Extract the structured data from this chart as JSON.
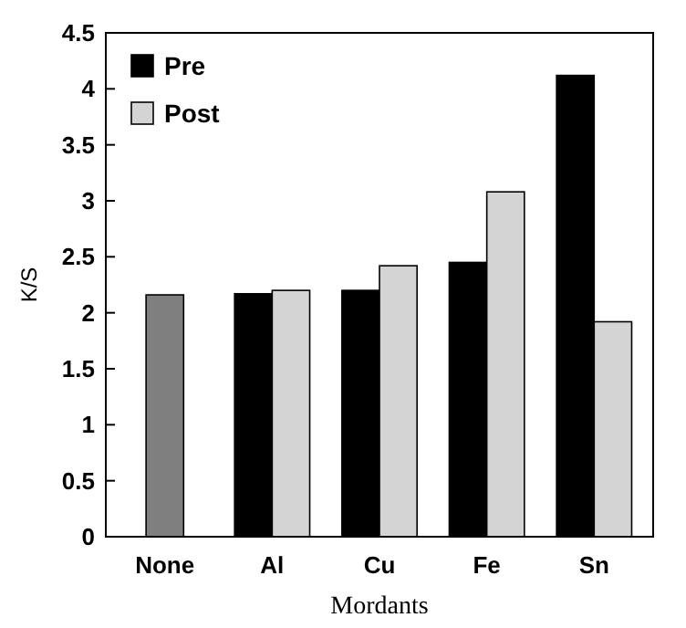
{
  "chart_data": {
    "type": "bar",
    "xlabel": "Mordants",
    "ylabel": "K/S",
    "categories": [
      "None",
      "Al",
      "Cu",
      "Fe",
      "Sn"
    ],
    "series": [
      {
        "color": "#7f7f7f",
        "values": [
          2.16,
          null,
          null,
          null,
          null
        ]
      },
      {
        "name": "Pre",
        "color": "#000000",
        "values": [
          null,
          2.17,
          2.2,
          2.45,
          4.12
        ]
      },
      {
        "name": "Post",
        "color": "#d4d4d4",
        "values": [
          null,
          2.2,
          2.42,
          3.08,
          1.92
        ]
      }
    ],
    "ylim": [
      0,
      4.5
    ],
    "yticks": [
      0,
      0.5,
      1,
      1.5,
      2,
      2.5,
      3,
      3.5,
      4,
      4.5
    ],
    "grid": false,
    "legend": "top left"
  }
}
